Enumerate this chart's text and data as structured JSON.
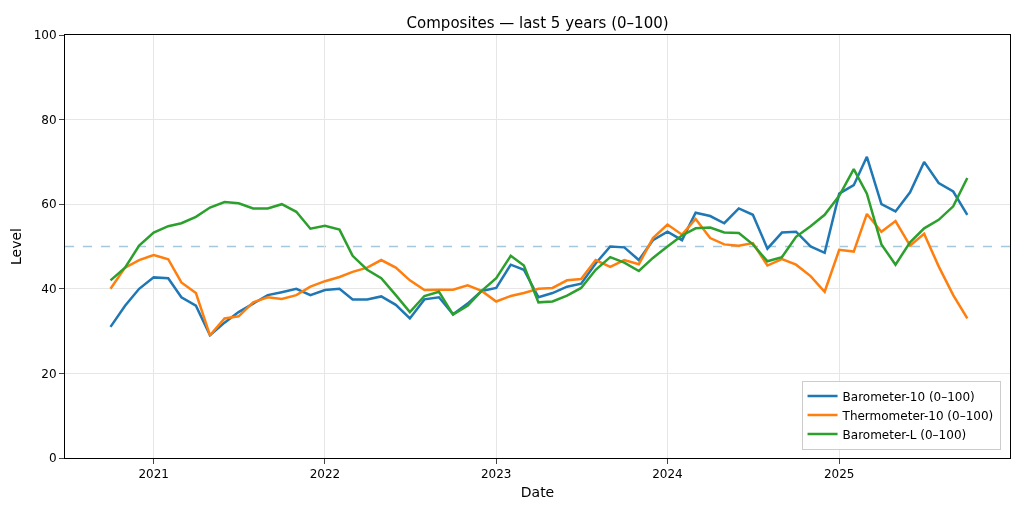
{
  "chart_data": {
    "type": "line",
    "title": "Composites — last 5 years (0–100)",
    "xlabel": "Date",
    "ylabel": "Level",
    "x": [
      "2020-10",
      "2020-11",
      "2020-12",
      "2021-01",
      "2021-02",
      "2021-03",
      "2021-04",
      "2021-05",
      "2021-06",
      "2021-07",
      "2021-08",
      "2021-09",
      "2021-10",
      "2021-11",
      "2021-12",
      "2022-01",
      "2022-02",
      "2022-03",
      "2022-04",
      "2022-05",
      "2022-06",
      "2022-07",
      "2022-08",
      "2022-09",
      "2022-10",
      "2022-11",
      "2022-12",
      "2023-01",
      "2023-02",
      "2023-03",
      "2023-04",
      "2023-05",
      "2023-06",
      "2023-07",
      "2023-08",
      "2023-09",
      "2023-10",
      "2023-11",
      "2023-12",
      "2024-01",
      "2024-02",
      "2024-03",
      "2024-04",
      "2024-05",
      "2024-06",
      "2024-07",
      "2024-08",
      "2024-09",
      "2024-10",
      "2024-11",
      "2024-12",
      "2025-01",
      "2025-02",
      "2025-03",
      "2025-04",
      "2025-05",
      "2025-06",
      "2025-07",
      "2025-08",
      "2025-09",
      "2025-10"
    ],
    "series": [
      {
        "name": "Barometer-10 (0–100)",
        "color": "#1f77b4",
        "values": [
          31,
          36,
          40,
          42.7,
          42.5,
          38,
          36,
          29,
          32,
          34.5,
          36.5,
          38.5,
          39.2,
          40,
          38.5,
          39.7,
          40,
          37.5,
          37.5,
          38.2,
          36.2,
          33,
          37.5,
          38,
          34,
          36.5,
          39.5,
          40.2,
          45.7,
          44.5,
          38,
          39,
          40.5,
          41.2,
          46,
          50,
          49.8,
          46.8,
          51.5,
          53.5,
          51.5,
          58,
          57.2,
          55.5,
          59,
          57.5,
          49.5,
          53.3,
          53.5,
          50,
          48.5,
          62.5,
          64.5,
          71.2,
          60,
          58.3,
          62.8,
          70,
          65,
          63,
          57.5
        ]
      },
      {
        "name": "Thermometer-10 (0–100)",
        "color": "#ff7f0e",
        "values": [
          40,
          45,
          46.8,
          48,
          47,
          41.5,
          39,
          29,
          33,
          33.5,
          36.8,
          38,
          37.6,
          38.5,
          40.5,
          41.8,
          42.8,
          44,
          45,
          46.8,
          45,
          42,
          39.7,
          39.8,
          39.8,
          40.8,
          39.5,
          37,
          38.3,
          39,
          40,
          40.2,
          42,
          42.3,
          46.8,
          45.2,
          46.8,
          45.8,
          52,
          55.2,
          52.8,
          56.5,
          52,
          50.5,
          50.2,
          50.8,
          45.5,
          47,
          45.7,
          43,
          39.3,
          49.2,
          48.8,
          57.7,
          53.5,
          56,
          50.2,
          53,
          45.3,
          38.5,
          33
        ]
      },
      {
        "name": "Barometer-L (0–100)",
        "color": "#2ca02c",
        "values": [
          42,
          45,
          50.2,
          53.3,
          54.8,
          55.5,
          57,
          59.2,
          60.5,
          60.2,
          59,
          59,
          60,
          58.2,
          54.2,
          54.9,
          54,
          47.8,
          44.5,
          42.5,
          38.5,
          34.5,
          38.3,
          39.3,
          33.9,
          36,
          39.5,
          42.5,
          47.8,
          45.5,
          36.8,
          37,
          38.4,
          40.2,
          44.5,
          47.5,
          46.2,
          44.2,
          47.3,
          50,
          52.6,
          54.3,
          54.5,
          53.3,
          53.2,
          50.5,
          46.5,
          47.5,
          52.3,
          54.8,
          57.5,
          62,
          68.3,
          62.5,
          50.5,
          45.7,
          51,
          54.3,
          56.3,
          59.5,
          66.2
        ]
      }
    ],
    "xlim": [
      "2020-06-26",
      "2025-12-31"
    ],
    "xticks": [
      "2021",
      "2022",
      "2023",
      "2024",
      "2025"
    ],
    "ylim": [
      0,
      100
    ],
    "yticks": [
      0,
      20,
      40,
      60,
      80,
      100
    ],
    "ref_lines": [
      {
        "axis": "y",
        "value": 50,
        "color": "#a6c8dc",
        "line_style": "dashed"
      }
    ],
    "grid": true,
    "legend": "bottom right",
    "marker": "none",
    "line_style": "solid"
  }
}
